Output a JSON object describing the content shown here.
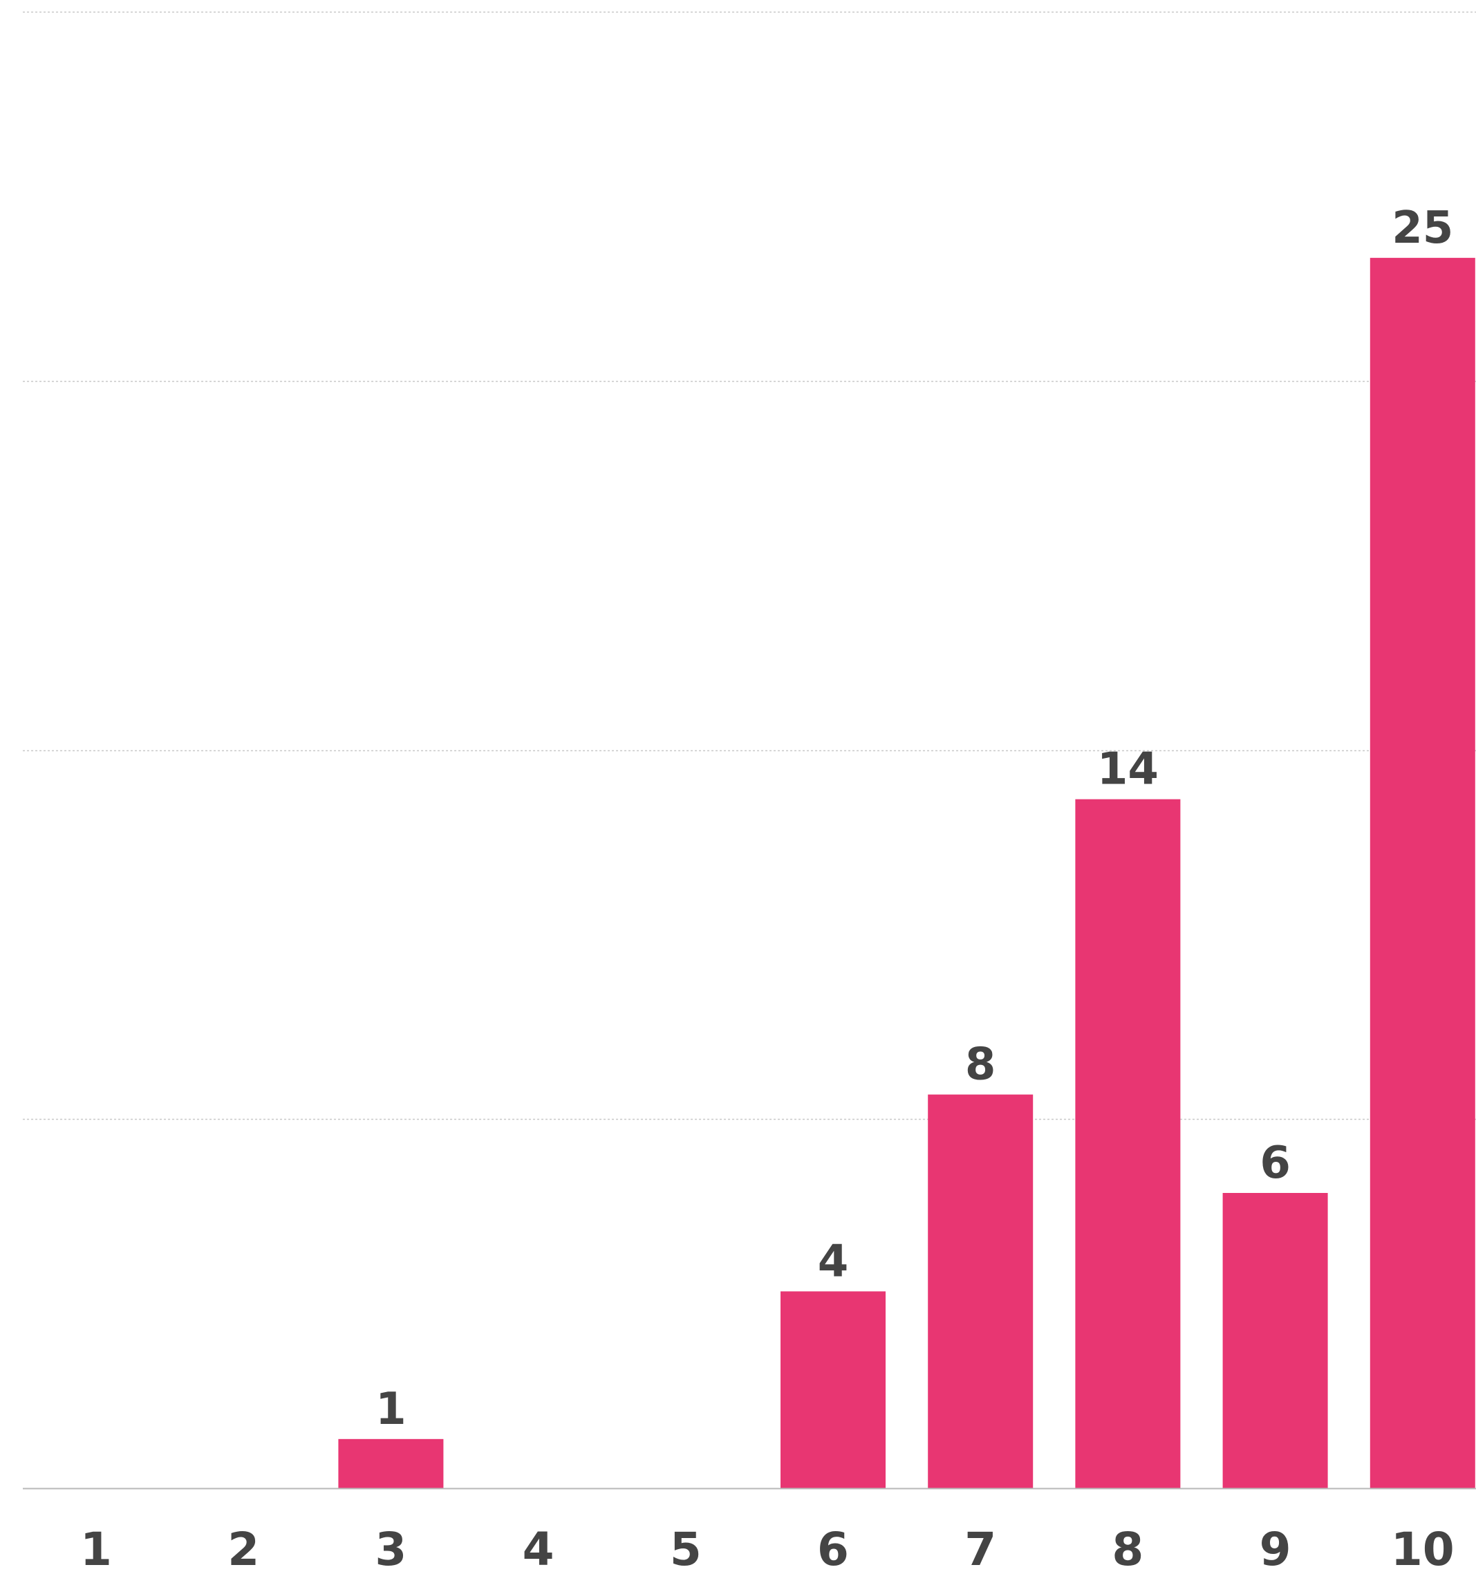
{
  "chart_data": {
    "type": "bar",
    "title": "",
    "xlabel": "",
    "ylabel": "",
    "categories": [
      "1",
      "2",
      "3",
      "4",
      "5",
      "6",
      "7",
      "8",
      "9",
      "10"
    ],
    "values": [
      0,
      0,
      1,
      0,
      0,
      4,
      8,
      14,
      6,
      25
    ],
    "data_labels": [
      "",
      "",
      "1",
      "",
      "",
      "4",
      "8",
      "14",
      "6",
      "25"
    ],
    "ylim": [
      0,
      30
    ],
    "gridlines": [
      7.5,
      15,
      22.5,
      30
    ],
    "grid": true,
    "legend": "none",
    "colors": {
      "bar": "#e83672",
      "text": "#444444",
      "grid": "#c8c8c8",
      "baseline": "#b8b8b8"
    }
  }
}
